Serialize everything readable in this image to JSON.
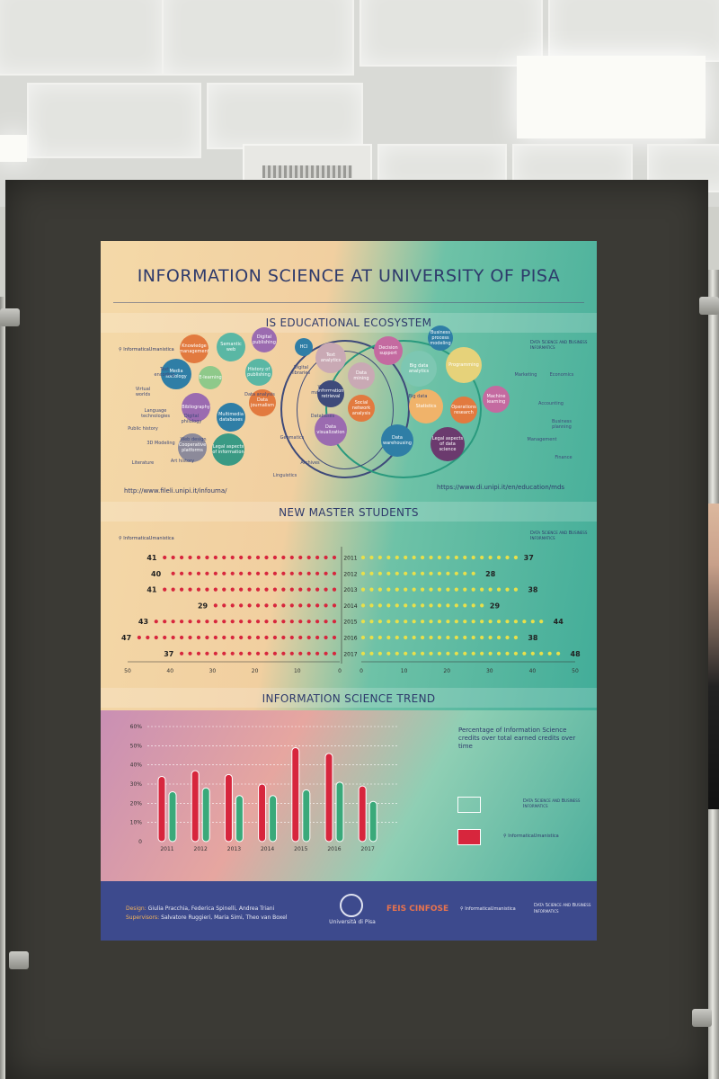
{
  "poster": {
    "title": "INFORMATION SCIENCE AT UNIVERSITY OF PISA",
    "ecosystem": {
      "title": "IS EDUCATIONAL ECOSYSTEM",
      "left_logo": "InformaticaUmanistica",
      "right_logo": "Data Science and Business Informatics",
      "url_left": "http://www.fileli.unipi.it/infouma/",
      "url_right": "https://www.di.unipi.it/en/education/mds",
      "bubbles": [
        {
          "label": "Knowledge management",
          "color": "#e27a3f"
        },
        {
          "label": "Semantic web",
          "color": "#5ab7a4"
        },
        {
          "label": "Digital publishing",
          "color": "#9b6bb0"
        },
        {
          "label": "HCI",
          "color": "#2f7ea6"
        },
        {
          "label": "Media sociology",
          "color": "#2f7ea6"
        },
        {
          "label": "E-learning",
          "color": "#8ec98a"
        },
        {
          "label": "History of publishing",
          "color": "#5ab7a4"
        },
        {
          "label": "Bibliography",
          "color": "#9b6bb0"
        },
        {
          "label": "Data journalism",
          "color": "#e27a3f"
        },
        {
          "label": "Multimedia databases",
          "color": "#2f7ea6"
        },
        {
          "label": "Legal aspects of information",
          "color": "#3a9a84"
        },
        {
          "label": "Cooperative platforms",
          "color": "#8c8a9a"
        },
        {
          "label": "Text analytics",
          "color": "#c9a9b4"
        },
        {
          "label": "Data mining",
          "color": "#c9a9b4"
        },
        {
          "label": "Information retrieval",
          "color": "#3e4a7a"
        },
        {
          "label": "Social network analysis",
          "color": "#e27a3f"
        },
        {
          "label": "Data visualization",
          "color": "#9b6bb0"
        },
        {
          "label": "Decision support",
          "color": "#c46aa0"
        },
        {
          "label": "Business process modeling",
          "color": "#2f7ea6"
        },
        {
          "label": "Big data analytics",
          "color": "#7dc7b2"
        },
        {
          "label": "Programming",
          "color": "#e6d27a"
        },
        {
          "label": "Statistics",
          "color": "#f0b36a"
        },
        {
          "label": "Operations research",
          "color": "#e27a3f"
        },
        {
          "label": "Machine learning",
          "color": "#c46aa0"
        },
        {
          "label": "Data warehousing",
          "color": "#2f7ea6"
        },
        {
          "label": "Legal aspects of data science",
          "color": "#6b3a6e"
        }
      ],
      "small_labels": [
        "Text encoding",
        "Virtual worlds",
        "Language technologies",
        "Public history",
        "3D Modeling",
        "Literature",
        "Digital philology",
        "Web design",
        "Art history",
        "Digital libraries",
        "Data analysis",
        "Web marketing",
        "Geomatics",
        "Databases",
        "Archives",
        "Linguistics",
        "Big data",
        "Marketing",
        "Economics",
        "Accounting",
        "Business planning",
        "Management",
        "Finance"
      ]
    },
    "students": {
      "title": "NEW MASTER STUDENTS",
      "left_logo": "InformaticaUmanistica",
      "right_logo": "Data Science and Business Informatics",
      "left_axis": [
        "50",
        "40",
        "30",
        "20",
        "10",
        "0"
      ],
      "right_axis": [
        "0",
        "10",
        "20",
        "30",
        "40",
        "50"
      ]
    },
    "trend": {
      "title": "INFORMATION SCIENCE TREND",
      "description": "Percentage of Information Science credits over total earned credits over time",
      "legend_white": "Data Science and Business Informatics",
      "legend_red": "InformaticaUmanistica"
    },
    "footer": {
      "design_key": "Design:",
      "design_names": "Giulia Pracchia, Federica Spinelli, Andrea Triani",
      "supervisors_key": "Supervisors:",
      "supervisors_names": "Salvatore Ruggieri, Maria Simi, Theo van Boxel",
      "university": "Università di Pisa",
      "sponsor": "FEIS CINFOSE",
      "logo_umanistica": "InformaticaUmanistica",
      "logo_dsbi": "Data Science and Business Informatics"
    }
  },
  "chart_data": [
    {
      "type": "bar",
      "title": "NEW MASTER STUDENTS",
      "categories": [
        "2011",
        "2012",
        "2013",
        "2014",
        "2015",
        "2016",
        "2017"
      ],
      "series": [
        {
          "name": "InformaticaUmanistica",
          "values": [
            41,
            40,
            41,
            29,
            43,
            47,
            37
          ]
        },
        {
          "name": "Data Science and Business Informatics",
          "values": [
            37,
            28,
            38,
            29,
            44,
            38,
            48
          ]
        }
      ],
      "xlim": [
        0,
        50
      ],
      "orientation": "horizontal-butterfly"
    },
    {
      "type": "bar",
      "title": "INFORMATION SCIENCE TREND",
      "categories": [
        "2011",
        "2012",
        "2013",
        "2014",
        "2015",
        "2016",
        "2017"
      ],
      "y_ticks": [
        "0",
        "10%",
        "20%",
        "30%",
        "40%",
        "50%",
        "60%"
      ],
      "ylim": [
        0,
        60
      ],
      "series": [
        {
          "name": "InformaticaUmanistica",
          "color": "#d7263d",
          "values": [
            34,
            37,
            35,
            30,
            49,
            46,
            29
          ]
        },
        {
          "name": "Data Science and Business Informatics",
          "color": "#3aa97a",
          "values": [
            26,
            28,
            24,
            24,
            27,
            31,
            21
          ]
        }
      ],
      "grid": true
    }
  ],
  "colors": {
    "red": "#d7263d",
    "yellow": "#e8e04a",
    "navy": "#3d4a8d",
    "green": "#3aa97a"
  }
}
